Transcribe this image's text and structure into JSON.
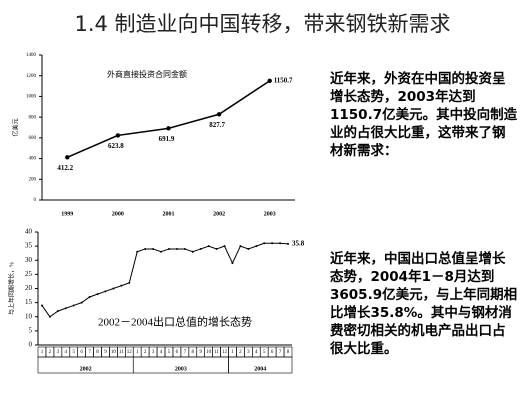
{
  "title": "1.4 制造业向中国转移，带来钢铁新需求",
  "text_blocks": [
    "近年来，外资在中国的投资呈增长态势，2003年达到1150.7亿美元。其中投向制造业的占很大比重，这带来了钢材新需求：",
    "近年来，中国出口总值呈增长态势，2004年1－8月达到3605.9亿美元，与上年同期相比增长35.8%。其中与钢材消费密切相关的机电产品出口占很大比重。"
  ],
  "chart_data": [
    {
      "type": "line",
      "title": "外商直接投资合同金额",
      "y_label": "亿美元",
      "categories": [
        "1999",
        "2000",
        "2001",
        "2002",
        "2003"
      ],
      "values": [
        412.2,
        623.8,
        691.9,
        827.7,
        1150.7
      ],
      "color": "#000000",
      "ylim": [
        0,
        1400
      ],
      "yticks": [
        0,
        200,
        400,
        600,
        800,
        1000,
        1200,
        1400
      ],
      "data_labels": true
    },
    {
      "type": "line",
      "title": "2002－2004出口总值的增长态势",
      "y_label": "与上年同期增长，%",
      "categories": [
        "1",
        "2",
        "3",
        "4",
        "5",
        "6",
        "7",
        "8",
        "9",
        "10",
        "11",
        "12",
        "1",
        "2",
        "3",
        "4",
        "5",
        "6",
        "7",
        "8",
        "9",
        "10",
        "11",
        "12",
        "1",
        "2",
        "3",
        "4",
        "5",
        "6",
        "7",
        "8"
      ],
      "year_labels": [
        "2002",
        "2003",
        "2004"
      ],
      "values": [
        14,
        10,
        12,
        13,
        14,
        15,
        17,
        18,
        19,
        20,
        21,
        22,
        33,
        34,
        34,
        33,
        34,
        34,
        34,
        33,
        34,
        35,
        34,
        35,
        29,
        35,
        34,
        35,
        36,
        36,
        36,
        35.8
      ],
      "last_label": true,
      "color": "#000000",
      "ylim": [
        0,
        40
      ],
      "yticks": [
        0,
        5,
        10,
        15,
        20,
        25,
        30,
        35,
        40
      ],
      "data_labels": false
    }
  ]
}
